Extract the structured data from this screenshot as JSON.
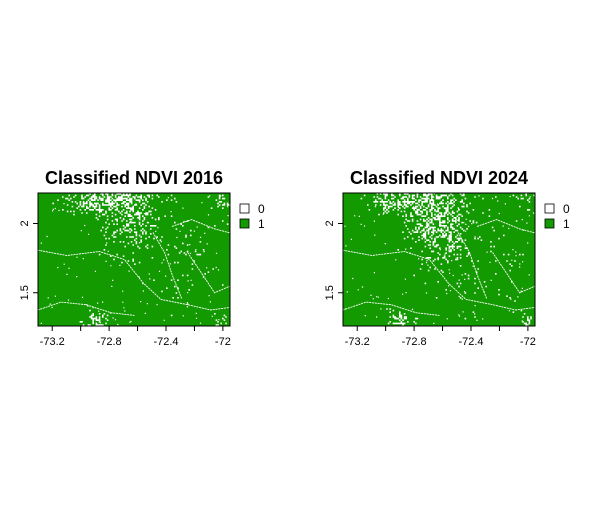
{
  "colors": {
    "class_0": "#ffffff",
    "class_1": "#129a00",
    "axis": "#000000"
  },
  "chart_data": [
    {
      "type": "heatmap",
      "title": "Classified NDVI 2016",
      "xlabel": "",
      "ylabel": "",
      "xlim": [
        -73.3,
        -71.95
      ],
      "ylim": [
        1.26,
        2.22
      ],
      "x_ticks": [
        -73.2,
        -72.8,
        -72.4,
        -72
      ],
      "x_tick_labels": [
        "-73.2",
        "-72.8",
        "-72.4",
        "-72"
      ],
      "y_ticks": [
        1.5,
        2
      ],
      "y_tick_labels": [
        "1.5",
        "2"
      ],
      "legend": {
        "placement": "right",
        "entries": [
          {
            "label": "0",
            "color": "#ffffff"
          },
          {
            "label": "1",
            "color": "#129a00"
          }
        ]
      },
      "grid": false
    },
    {
      "type": "heatmap",
      "title": "Classified NDVI 2024",
      "xlabel": "",
      "ylabel": "",
      "xlim": [
        -73.3,
        -71.95
      ],
      "ylim": [
        1.26,
        2.22
      ],
      "x_ticks": [
        -73.2,
        -72.8,
        -72.4,
        -72
      ],
      "x_tick_labels": [
        "-73.2",
        "-72.8",
        "-72.4",
        "-72"
      ],
      "y_ticks": [
        1.5,
        2
      ],
      "y_tick_labels": [
        "1.5",
        "2"
      ],
      "legend": {
        "placement": "right",
        "entries": [
          {
            "label": "0",
            "color": "#ffffff"
          },
          {
            "label": "1",
            "color": "#129a00"
          }
        ]
      },
      "grid": false
    }
  ]
}
